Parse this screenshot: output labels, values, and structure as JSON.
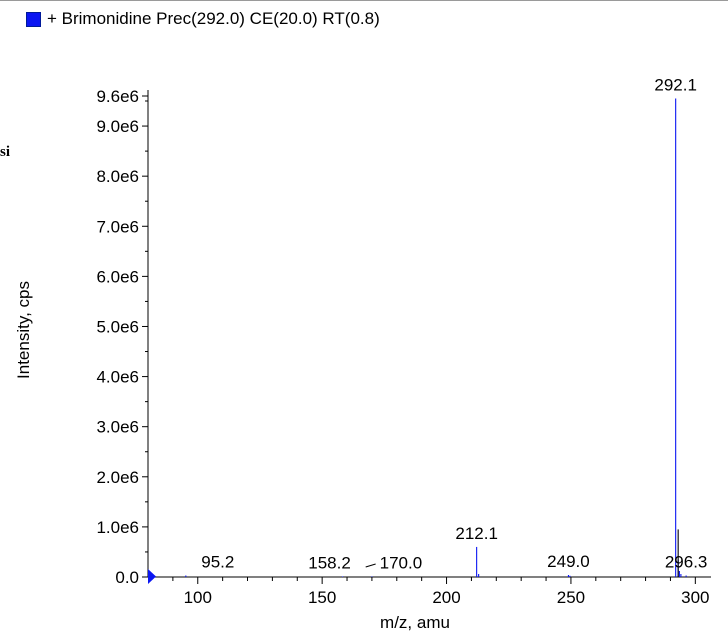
{
  "legend": {
    "text": "+ Brimonidine Prec(292.0) CE(20.0) RT(0.8)",
    "swatch_color": "#0b16f2"
  },
  "stray_text": "si",
  "chart_data": {
    "type": "bar",
    "title": "+ Brimonidine Prec(292.0) CE(20.0) RT(0.8)",
    "xlabel": "m/z, amu",
    "ylabel": "Intensity, cps",
    "xlim": [
      80,
      300
    ],
    "ylim": [
      0,
      9600000
    ],
    "x_ticks": [
      {
        "value": 100,
        "label": "100"
      },
      {
        "value": 150,
        "label": "150"
      },
      {
        "value": 200,
        "label": "200"
      },
      {
        "value": 250,
        "label": "250"
      },
      {
        "value": 300,
        "label": "300"
      }
    ],
    "y_ticks": [
      {
        "value": 0,
        "label": "0.0"
      },
      {
        "value": 1000000,
        "label": "1.0e6"
      },
      {
        "value": 2000000,
        "label": "2.0e6"
      },
      {
        "value": 3000000,
        "label": "3.0e6"
      },
      {
        "value": 4000000,
        "label": "4.0e6"
      },
      {
        "value": 5000000,
        "label": "5.0e6"
      },
      {
        "value": 6000000,
        "label": "6.0e6"
      },
      {
        "value": 7000000,
        "label": "7.0e6"
      },
      {
        "value": 8000000,
        "label": "8.0e6"
      },
      {
        "value": 9000000,
        "label": "9.0e6"
      },
      {
        "value": 9600000,
        "label": "9.6e6"
      }
    ],
    "series": [
      {
        "color": "#0b16f2",
        "x": [
          95.2,
          158.2,
          170.0,
          212.1,
          212.9,
          249.0,
          249.6,
          292.1,
          293.1,
          293.6,
          294.2,
          296.3
        ],
        "values": [
          30000,
          12000,
          12000,
          600000,
          60000,
          40000,
          25000,
          9550000,
          350000,
          120000,
          60000,
          30000
        ]
      },
      {
        "color": "#000000",
        "x": [
          293.1
        ],
        "values": [
          950000
        ]
      }
    ],
    "peak_labels": [
      {
        "x": 95.2,
        "y": 30000,
        "text": "95.2"
      },
      {
        "x": 158.2,
        "y": 12000,
        "text": "158.2"
      },
      {
        "x": 170.0,
        "y": 12000,
        "text": "170.0"
      },
      {
        "x": 212.1,
        "y": 600000,
        "text": "212.1"
      },
      {
        "x": 249.0,
        "y": 40000,
        "text": "249.0"
      },
      {
        "x": 292.1,
        "y": 9550000,
        "text": "292.1"
      },
      {
        "x": 296.3,
        "y": 30000,
        "text": "296.3"
      }
    ],
    "grid": false
  }
}
